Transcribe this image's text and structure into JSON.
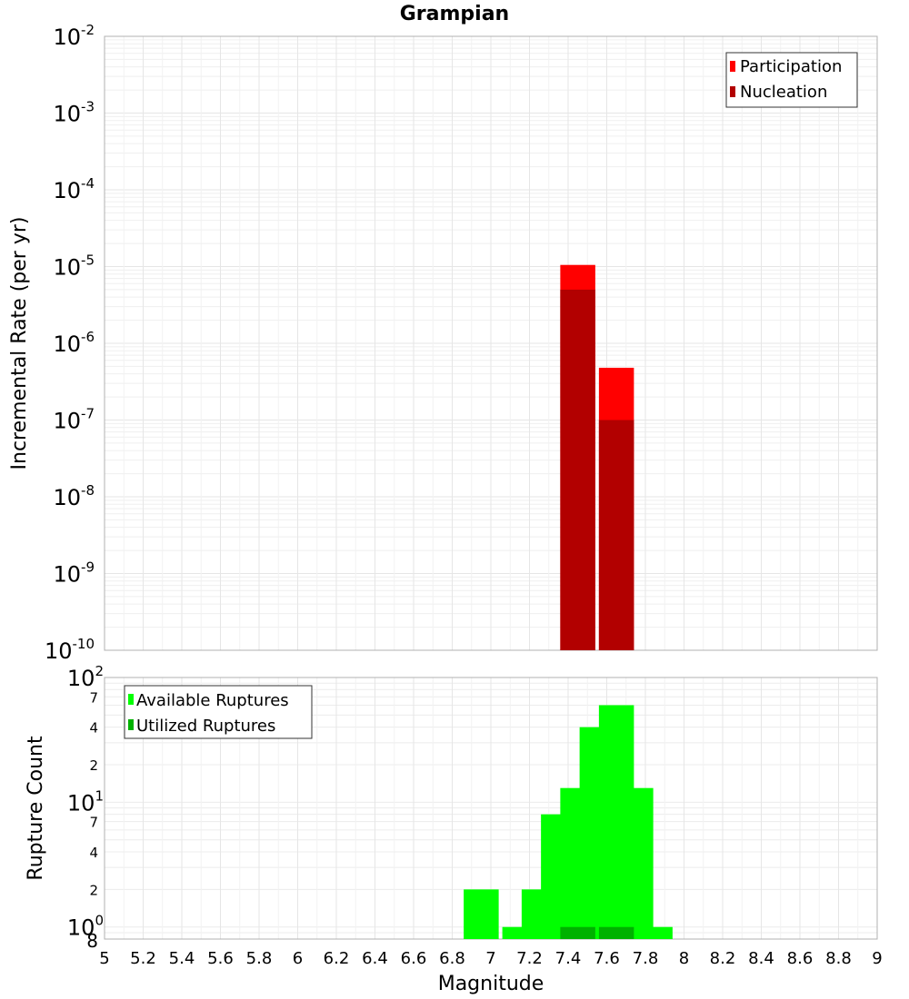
{
  "chart_data": [
    {
      "type": "bar",
      "title": "Grampian",
      "xlabel": "",
      "ylabel": "Incremental Rate (per yr)",
      "yscale": "log",
      "ylim": [
        1e-10,
        0.01
      ],
      "grid": true,
      "legend_position": "top-right",
      "x_tick_labels": [
        "5",
        "5.2",
        "5.4",
        "5.6",
        "5.8",
        "6",
        "6.2",
        "6.4",
        "6.6",
        "6.8",
        "7",
        "7.2",
        "7.4",
        "7.6",
        "7.8",
        "8",
        "8.2",
        "8.4",
        "8.6",
        "8.8",
        "9"
      ],
      "y_tick_labels": [
        {
          "base": "10",
          "exp": "-2"
        },
        {
          "base": "10",
          "exp": "-3"
        },
        {
          "base": "10",
          "exp": "-4"
        },
        {
          "base": "10",
          "exp": "-5"
        },
        {
          "base": "10",
          "exp": "-6"
        },
        {
          "base": "10",
          "exp": "-7"
        },
        {
          "base": "10",
          "exp": "-8"
        },
        {
          "base": "10",
          "exp": "-9"
        },
        {
          "base": "10",
          "exp": "-10"
        }
      ],
      "x": [
        7.45,
        7.65
      ],
      "series": [
        {
          "name": "Participation",
          "color": "#ff0000",
          "values": [
            1.05e-05,
            4.8e-07
          ]
        },
        {
          "name": "Nucleation",
          "color": "#b20000",
          "values": [
            5e-06,
            1e-07
          ]
        }
      ]
    },
    {
      "type": "bar",
      "xlabel": "Magnitude",
      "ylabel": "Rupture Count",
      "yscale": "log",
      "ylim": [
        0.8,
        100
      ],
      "xlim": [
        5,
        9
      ],
      "grid": true,
      "legend_position": "top-left",
      "x_tick_labels": [
        "5",
        "5.2",
        "5.4",
        "5.6",
        "5.8",
        "6",
        "6.2",
        "6.4",
        "6.6",
        "6.8",
        "7",
        "7.2",
        "7.4",
        "7.6",
        "7.8",
        "8",
        "8.2",
        "8.4",
        "8.6",
        "8.8",
        "9"
      ],
      "y_tick_labels": [
        {
          "base": "10",
          "exp": "2",
          "value": 100
        },
        {
          "base": "7",
          "exp": "",
          "value": 70
        },
        {
          "base": "4",
          "exp": "",
          "value": 40
        },
        {
          "base": "2",
          "exp": "",
          "value": 20
        },
        {
          "base": "10",
          "exp": "1",
          "value": 10
        },
        {
          "base": "7",
          "exp": "",
          "value": 7
        },
        {
          "base": "4",
          "exp": "",
          "value": 4
        },
        {
          "base": "2",
          "exp": "",
          "value": 2
        },
        {
          "base": "10",
          "exp": "0",
          "value": 1
        },
        {
          "base": "8",
          "exp": "",
          "value": 0.8
        }
      ],
      "x": [
        6.95,
        7.15,
        7.25,
        7.35,
        7.45,
        7.55,
        7.65,
        7.75,
        7.85
      ],
      "series": [
        {
          "name": "Available Ruptures",
          "color": "#00ff00",
          "values": [
            2,
            1,
            2,
            8,
            13,
            40,
            60,
            13,
            1
          ]
        },
        {
          "name": "Utilized Ruptures",
          "color": "#00b200",
          "values": [
            0,
            0,
            0,
            0,
            1,
            0,
            1,
            0,
            0
          ]
        }
      ]
    }
  ]
}
